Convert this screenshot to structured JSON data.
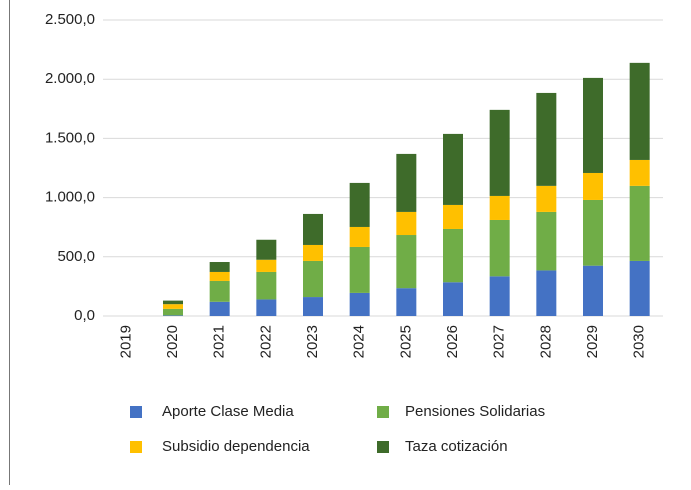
{
  "chart_data": {
    "type": "stacked_bar",
    "categories": [
      "2019",
      "2020",
      "2021",
      "2022",
      "2023",
      "2024",
      "2025",
      "2026",
      "2027",
      "2028",
      "2029",
      "2030"
    ],
    "series": [
      {
        "name": "Aporte Clase Media",
        "color": "#4472c4",
        "values": [
          0,
          5,
          120,
          140,
          160,
          195,
          235,
          285,
          335,
          385,
          425,
          465
        ]
      },
      {
        "name": "Pensiones Solidarias",
        "color": "#70ad47",
        "values": [
          0,
          55,
          176,
          232,
          305,
          388,
          449,
          450,
          476,
          494,
          555,
          634
        ]
      },
      {
        "name": "Subsidio dependencia",
        "color": "#ffc000",
        "values": [
          0,
          40,
          76,
          103,
          135,
          169,
          195,
          203,
          203,
          220,
          228,
          219
        ]
      },
      {
        "name": "Taza cotización",
        "color": "#3e6b2a",
        "values": [
          0,
          30,
          84,
          169,
          262,
          372,
          490,
          600,
          727,
          785,
          803,
          820
        ]
      }
    ],
    "ylim": [
      0,
      2500
    ],
    "yticks": [
      {
        "value": 0,
        "label": "0,0"
      },
      {
        "value": 500,
        "label": "500,0"
      },
      {
        "value": 1000,
        "label": "1.000,0"
      },
      {
        "value": 1500,
        "label": "1.500,0"
      },
      {
        "value": 2000,
        "label": "2.000,0"
      },
      {
        "value": 2500,
        "label": "2.500,0"
      }
    ],
    "grid": true
  }
}
